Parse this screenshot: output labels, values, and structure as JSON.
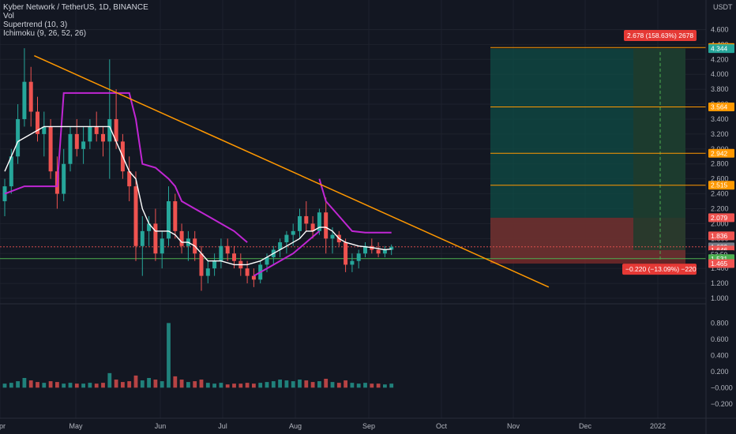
{
  "header": {
    "symbol_line": "Kyber Network / TetherUS, 1D, BINANCE",
    "indicators": [
      "Vol",
      "Supertrend (10, 3)",
      "Ichimoku (9, 26, 52, 26)"
    ]
  },
  "currency_label": "USDT",
  "colors": {
    "background": "#131722",
    "grid": "#1e222d",
    "candle_up": "#26a69a",
    "candle_down": "#ef5350",
    "trendline": "#ff9800",
    "supertrend": "#c026d3",
    "ichimoku_base": "#ffffff",
    "support": "#4caf50",
    "target_zone": "#0f4c46",
    "stop_zone": "#7a2b2b",
    "measure_zone": "#1f3b2c"
  },
  "chart_data": {
    "type": "candlestick",
    "x_axis": {
      "tick_labels": [
        "Apr",
        "May",
        "Jun",
        "Jul",
        "Aug",
        "Sep",
        "Oct",
        "Nov",
        "Dec",
        "2022"
      ]
    },
    "price_axis": {
      "ticks": [
        "4.600",
        "4.400",
        "4.200",
        "4.000",
        "3.800",
        "3.600",
        "3.400",
        "3.200",
        "3.000",
        "2.800",
        "2.600",
        "2.400",
        "2.200",
        "2.000",
        "1.800",
        "1.600",
        "1.400",
        "1.200",
        "1.000"
      ],
      "range": [
        1.0,
        4.7
      ]
    },
    "volume_axis": {
      "ticks": [
        "0.800",
        "0.600",
        "0.400",
        "0.200",
        "−0.000",
        "−0.200"
      ],
      "range": [
        -0.3,
        0.95
      ]
    },
    "candles_ohlc": [
      [
        2.3,
        2.6,
        2.1,
        2.5
      ],
      [
        2.5,
        3.0,
        2.4,
        2.9
      ],
      [
        2.9,
        3.6,
        2.8,
        3.4
      ],
      [
        3.4,
        4.35,
        3.3,
        3.9
      ],
      [
        3.9,
        4.1,
        3.3,
        3.5
      ],
      [
        3.5,
        3.7,
        3.1,
        3.2
      ],
      [
        3.2,
        3.5,
        2.9,
        3.3
      ],
      [
        3.3,
        3.4,
        2.6,
        2.7
      ],
      [
        2.7,
        2.9,
        2.2,
        2.4
      ],
      [
        2.4,
        3.0,
        2.3,
        2.8
      ],
      [
        2.8,
        3.3,
        2.7,
        3.2
      ],
      [
        3.2,
        3.4,
        2.9,
        3.0
      ],
      [
        3.0,
        3.3,
        2.8,
        3.1
      ],
      [
        3.1,
        3.4,
        3.0,
        3.3
      ],
      [
        3.3,
        3.5,
        3.1,
        3.2
      ],
      [
        3.2,
        3.3,
        2.9,
        3.1
      ],
      [
        3.1,
        4.2,
        2.6,
        3.4
      ],
      [
        3.4,
        3.8,
        3.0,
        3.1
      ],
      [
        3.1,
        3.2,
        2.6,
        2.7
      ],
      [
        2.7,
        2.9,
        2.3,
        2.5
      ],
      [
        2.5,
        2.7,
        1.5,
        1.7
      ],
      [
        1.7,
        2.1,
        1.3,
        1.9
      ],
      [
        1.9,
        2.1,
        1.7,
        2.0
      ],
      [
        2.0,
        2.2,
        1.5,
        1.6
      ],
      [
        1.6,
        1.9,
        1.4,
        1.8
      ],
      [
        1.8,
        2.5,
        1.7,
        2.3
      ],
      [
        2.3,
        2.4,
        1.8,
        1.9
      ],
      [
        1.9,
        2.0,
        1.6,
        1.7
      ],
      [
        1.7,
        1.9,
        1.5,
        1.8
      ],
      [
        1.8,
        1.9,
        1.5,
        1.6
      ],
      [
        1.6,
        1.7,
        1.1,
        1.3
      ],
      [
        1.3,
        1.5,
        1.2,
        1.4
      ],
      [
        1.4,
        1.6,
        1.3,
        1.5
      ],
      [
        1.5,
        1.8,
        1.4,
        1.7
      ],
      [
        1.7,
        1.8,
        1.5,
        1.6
      ],
      [
        1.6,
        1.7,
        1.4,
        1.5
      ],
      [
        1.5,
        1.6,
        1.3,
        1.4
      ],
      [
        1.4,
        1.5,
        1.2,
        1.3
      ],
      [
        1.3,
        1.4,
        1.15,
        1.25
      ],
      [
        1.25,
        1.5,
        1.2,
        1.45
      ],
      [
        1.45,
        1.6,
        1.35,
        1.55
      ],
      [
        1.55,
        1.7,
        1.45,
        1.65
      ],
      [
        1.65,
        1.8,
        1.55,
        1.75
      ],
      [
        1.75,
        1.9,
        1.6,
        1.85
      ],
      [
        1.85,
        2.0,
        1.7,
        1.9
      ],
      [
        1.9,
        2.2,
        1.8,
        2.1
      ],
      [
        2.1,
        2.3,
        1.9,
        2.0
      ],
      [
        2.0,
        2.1,
        1.8,
        1.9
      ],
      [
        1.9,
        2.2,
        1.85,
        2.15
      ],
      [
        2.15,
        2.35,
        1.6,
        1.8
      ],
      [
        1.8,
        1.95,
        1.6,
        1.85
      ],
      [
        1.85,
        1.9,
        1.7,
        1.75
      ],
      [
        1.75,
        1.8,
        1.35,
        1.45
      ],
      [
        1.45,
        1.6,
        1.35,
        1.5
      ],
      [
        1.5,
        1.65,
        1.4,
        1.6
      ],
      [
        1.6,
        1.75,
        1.55,
        1.7
      ],
      [
        1.7,
        1.8,
        1.6,
        1.65
      ],
      [
        1.65,
        1.75,
        1.55,
        1.6
      ],
      [
        1.6,
        1.7,
        1.55,
        1.65
      ],
      [
        1.65,
        1.72,
        1.58,
        1.69
      ]
    ],
    "volume_values": [
      0.05,
      0.06,
      0.08,
      0.12,
      0.09,
      0.07,
      0.06,
      0.08,
      0.07,
      0.05,
      0.06,
      0.05,
      0.05,
      0.06,
      0.05,
      0.06,
      0.18,
      0.1,
      0.07,
      0.08,
      0.15,
      0.09,
      0.12,
      0.1,
      0.08,
      0.8,
      0.14,
      0.1,
      0.07,
      0.08,
      0.1,
      0.06,
      0.05,
      0.06,
      0.04,
      0.05,
      0.05,
      0.06,
      0.05,
      0.06,
      0.07,
      0.08,
      0.1,
      0.09,
      0.08,
      0.1,
      0.09,
      0.07,
      0.08,
      0.11,
      0.07,
      0.06,
      0.09,
      0.06,
      0.05,
      0.06,
      0.05,
      0.05,
      0.04,
      0.05
    ],
    "supertrend_segments": [
      [
        [
          0,
          2.4
        ],
        [
          3,
          2.5
        ],
        [
          5,
          2.5
        ],
        [
          8,
          2.5
        ],
        [
          9,
          3.75
        ],
        [
          12,
          3.75
        ],
        [
          15,
          3.75
        ],
        [
          19,
          3.75
        ],
        [
          20,
          3.4
        ],
        [
          21,
          2.8
        ],
        [
          23,
          2.75
        ],
        [
          25,
          2.6
        ],
        [
          26,
          2.5
        ],
        [
          27,
          2.3
        ],
        [
          29,
          2.2
        ],
        [
          31,
          2.1
        ],
        [
          33,
          2.0
        ],
        [
          35,
          1.9
        ],
        [
          37,
          1.75
        ]
      ],
      [
        [
          38,
          1.3
        ],
        [
          40,
          1.4
        ],
        [
          42,
          1.5
        ],
        [
          44,
          1.6
        ],
        [
          46,
          1.75
        ],
        [
          48,
          1.9
        ]
      ],
      [
        [
          48,
          2.6
        ],
        [
          49,
          2.3
        ],
        [
          51,
          2.1
        ],
        [
          53,
          1.9
        ],
        [
          55,
          1.88
        ],
        [
          59,
          1.88
        ]
      ]
    ],
    "ichimoku_base": [
      [
        0,
        2.7
      ],
      [
        2,
        3.1
      ],
      [
        4,
        3.2
      ],
      [
        6,
        3.3
      ],
      [
        8,
        3.3
      ],
      [
        10,
        3.3
      ],
      [
        12,
        3.3
      ],
      [
        14,
        3.3
      ],
      [
        16,
        3.3
      ],
      [
        17,
        3.1
      ],
      [
        18,
        2.9
      ],
      [
        19,
        2.7
      ],
      [
        20,
        2.6
      ],
      [
        21,
        2.2
      ],
      [
        22,
        2.0
      ],
      [
        23,
        1.9
      ],
      [
        25,
        1.9
      ],
      [
        26,
        1.85
      ],
      [
        27,
        1.75
      ],
      [
        28,
        1.75
      ],
      [
        29,
        1.7
      ],
      [
        30,
        1.6
      ],
      [
        31,
        1.5
      ],
      [
        33,
        1.5
      ],
      [
        35,
        1.45
      ],
      [
        37,
        1.45
      ],
      [
        39,
        1.5
      ],
      [
        41,
        1.6
      ],
      [
        43,
        1.7
      ],
      [
        45,
        1.8
      ],
      [
        46,
        1.9
      ],
      [
        47,
        1.9
      ],
      [
        48,
        1.95
      ],
      [
        49,
        1.95
      ],
      [
        50,
        1.9
      ],
      [
        51,
        1.8
      ],
      [
        52,
        1.75
      ],
      [
        54,
        1.7
      ],
      [
        56,
        1.68
      ],
      [
        58,
        1.65
      ],
      [
        59,
        1.66
      ]
    ],
    "trendline": {
      "from": [
        4.5,
        4.25
      ],
      "to": [
        83,
        1.15
      ]
    },
    "support_level": 1.531,
    "target_levels": [
      4.359,
      3.564,
      2.942,
      2.515
    ],
    "stop_zone": [
      2.079,
      1.465
    ],
    "price_labels": [
      {
        "text": "4.359",
        "value": 4.359,
        "color": "#ff9800"
      },
      {
        "text": "4.344",
        "value": 4.344,
        "color": "#26a69a"
      },
      {
        "text": "3.564",
        "value": 3.564,
        "color": "#ff9800"
      },
      {
        "text": "2.942",
        "value": 2.942,
        "color": "#ff9800"
      },
      {
        "text": "2.515",
        "value": 2.515,
        "color": "#ff9800"
      },
      {
        "text": "2.079",
        "value": 2.079,
        "color": "#ef5350"
      },
      {
        "text": "1.836",
        "value": 1.836,
        "color": "#ef5350"
      },
      {
        "text": "1.689",
        "value": 1.689,
        "color": "#787b86"
      },
      {
        "text": "1.646",
        "value": 1.646,
        "color": "#ef5350"
      },
      {
        "text": "53:50",
        "value": 1.585,
        "color": "#131722"
      },
      {
        "text": "1.531",
        "value": 1.531,
        "color": "#4caf50"
      },
      {
        "text": "1.465",
        "value": 1.465,
        "color": "#ef5350"
      }
    ],
    "annotations": {
      "profit": "2.678 (158.63%) 2678",
      "loss": "−0.220 (−13.09%) −220"
    }
  }
}
